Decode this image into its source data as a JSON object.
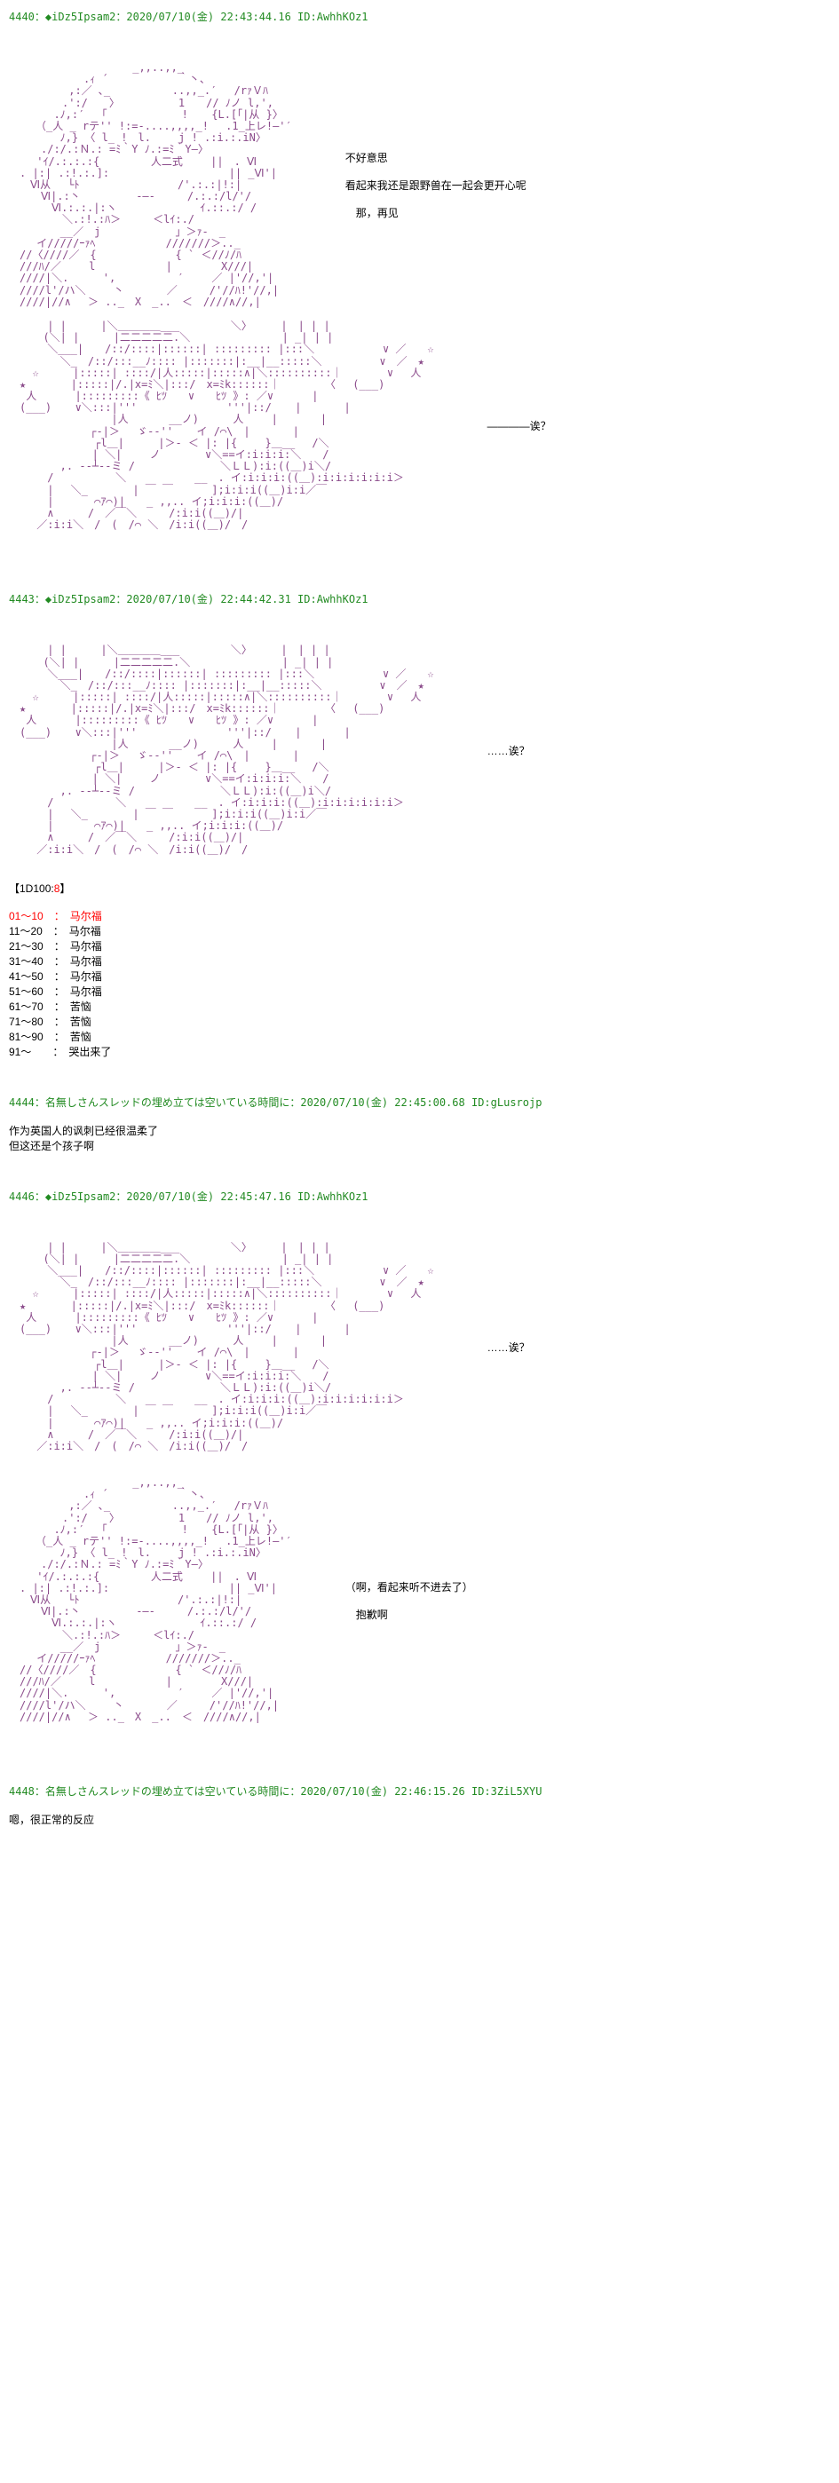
{
  "posts": [
    {
      "num": "4440",
      "name": "◆iDz5Ipsam2",
      "date": "2020/07/10(金) 22:43:44.16",
      "id": "AwhhKOz1",
      "dialogue1_line1": "不好意思",
      "dialogue1_line2": "看起来我还是跟野兽在一起会更开心呢",
      "dialogue1_line3": "　那，再见",
      "dialogue2": "————诶？"
    },
    {
      "num": "4443",
      "name": "◆iDz5Ipsam2",
      "date": "2020/07/10(金) 22:44:42.31",
      "id": "AwhhKOz1",
      "dialogue1": "……诶？",
      "dice_header": "【1D100:",
      "dice_result": "8",
      "dice_end": "】",
      "dice_rows": [
        {
          "range": "01～10",
          "sep": "：",
          "result": "马尔福",
          "red": true
        },
        {
          "range": "11～20",
          "sep": "：",
          "result": "马尔福",
          "red": false
        },
        {
          "range": "21～30",
          "sep": "：",
          "result": "马尔福",
          "red": false
        },
        {
          "range": "31～40",
          "sep": "：",
          "result": "马尔福",
          "red": false
        },
        {
          "range": "41～50",
          "sep": "：",
          "result": "马尔福",
          "red": false
        },
        {
          "range": "51～60",
          "sep": "：",
          "result": "马尔福",
          "red": false
        },
        {
          "range": "61～70",
          "sep": "：",
          "result": "苦恼",
          "red": false
        },
        {
          "range": "71～80",
          "sep": "：",
          "result": "苦恼",
          "red": false
        },
        {
          "range": "81～90",
          "sep": "：",
          "result": "苦恼",
          "red": false
        },
        {
          "range": "91～　",
          "sep": "：",
          "result": "哭出来了",
          "red": false
        }
      ]
    },
    {
      "num": "4444",
      "name": "名無しさんスレッドの埋め立ては空いている時間に",
      "date": "2020/07/10(金) 22:45:00.68",
      "id": "gLusrojp",
      "body": "作为英国人的讽刺已经很温柔了\n但这还是个孩子啊"
    },
    {
      "num": "4446",
      "name": "◆iDz5Ipsam2",
      "date": "2020/07/10(金) 22:45:47.16",
      "id": "AwhhKOz1",
      "dialogue1": "……诶？",
      "dialogue2_line1": "（啊，看起来听不进去了）",
      "dialogue2_line2": "　抱歉啊"
    },
    {
      "num": "4448",
      "name": "名無しさんスレッドの埋め立ては空いている時間に",
      "date": "2020/07/10(金) 22:46:15.26",
      "id": "3ZiL5XYU",
      "body": "嗯，很正常的反应"
    }
  ],
  "aa": {
    "boy": "　　　　　　　　　　　 _,,..,,_\n　　　　　　　.ｨ ´　　　　　　 ｀丶、\n　　　　　 ,:／ ､_　　 　 　 ..,,_.′　 /rｧＶﾊ\n　　　　　.':/　　〉　　　　　　1　　// ﾉノ l,',\n　 　 　.ﾉ,:′ 　｢　　　　　　　! 　 {L.[｢|从 }〉\n　　　（_人 _ rテ'' !:=-....,,,,_! 　.1_上レ!―'′\n　 　 　 ﾉ,} 〈 l_ !　l.　　 j ! .:i.:.iΝ〉\n　　　./:/.:Ｎ.: =ﾐ｀Υ ﾉ.:=ﾐ｀Υ―〉\n　　 'ｲ/.:.:.:{ 　 　　 人二式　　 ||　. Ⅵ\n　. |:| .:!.:.]:　　　　　　　　　 　 || _Ⅵ'|\n　　Ⅵ从　 └ﾄ　　　　　　　 　 /'.:.:|!:|\n　　　Ⅵ|.:丶　　　 　 -―-　　　/.:.:/l/'/\n　　　　Ⅵ.:.:.|:ヽ　 　　　　 　 ｲ.::.:/ /\n　　　　　＼.:!.:ﾊ＞　　　＜lｲ:./\n　 　 　 __／　j 　 　 　 　 」＞ｧ-　_\n　　 イ/////ｰｧﾍ　　　　　　 ///////＞.._\n　//〈////／　{ 　 　　 　　 { ` ＜//ﾉ/ﾊ\n　///ﾊ/／　　 l　　　　　　 |　　　　 Χ///|\n　////|＼. 　 　',　　 　 　 ′　　 ／ |'//,'|\n　////l'/ハ＼　 　丶　　　　／　　　/'//ﾊ!'//,|\n　////|//∧　 ＞ .._　X　_..　＜　////∧//,|",
    "girl": "　　　 | |　 　 |＼＿＿＿＿___ 　　 　 ＼〉　 　 |　| | |\n　 　 (＼| |　 　 |二二二二二.＼ 　 　 　 　 　 | _| | |\n　　　 ＼___|　　/::/::::|::::::| ::::::::: |:::＼　 　 　 　 ∨ ／　　☆\n　 　 　 ＼_　/::/:::__ﾉ:::: |:::::::|:__|__:::::＼ 　 　 　 ∨　／　★\n 　 ☆　 　 |:::::| ::::/|人:::::|:::::∧|＼::::::::::｜　 　 　∨　 人\n　★ 　 　　|:::::|/.|x=ﾐ＼|:::/　x=ﾐk::::::｜　　 　 〈　 (___)\n　 人　 　　|:::::::::《 ﾋﾂ　　∨　　ﾋﾂ 》: ／∨　　　 |\n　(___) 　 ∨＼:::|'''　 　　 　 　 　'''|::/ 　 |　　　　|\n　 　 　 　 　 　 |人 　 　 __ノ)　 　 人 　　|　　　　|\n　　　　　　　 ┌‐|＞　 ゞ-‐'' 　 イ /⌒\\　|　　　　|\n　 　 　 　 　 ┌l＿|　 　 |＞‐ ＜ |: |{　　 }＿__　 /＼\n　　　　 　 　 | ＼|　　 ノ　 　　 ∨＼==イ:i:i:i:＼　　/\n　 　 　 ,. -‐┴‐-ミ /　 　 　 　 　 ＼ＬＬ):i:((＿)i＼/\n　　　 /　　 　 　 ＼　 　 　 　 __　. イ:i:i:i:((＿):i:i:i:i:i:i＞\n　　　 | 　＼_　　 　 | ￣ ￣　　　 ];i:i:i((＿)i:i／￣\n　　　 | 　 　 ⌒ｱ⌒)|　　_ ,,.. イ;i:i:i:((＿)/\n　　　 ∧　 　 /　／￣＼　　　/:i:i((＿)/|\n　　 ／:i:i＼　/　(　/⌒ ＼　/i:i((＿)/　/"
  }
}
